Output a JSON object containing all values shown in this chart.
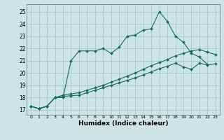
{
  "xlabel": "Humidex (Indice chaleur)",
  "background_color": "#cde4e4",
  "grid_color": "#aacccc",
  "line_color": "#1a6b5a",
  "xlim": [
    -0.5,
    23.5
  ],
  "ylim": [
    16.6,
    25.6
  ],
  "yticks": [
    17,
    18,
    19,
    20,
    21,
    22,
    23,
    24,
    25
  ],
  "xticks": [
    0,
    1,
    2,
    3,
    4,
    5,
    6,
    7,
    8,
    9,
    10,
    11,
    12,
    13,
    14,
    15,
    16,
    17,
    18,
    19,
    20,
    21,
    22,
    23
  ],
  "line1_x": [
    0,
    1,
    2,
    3,
    4,
    5,
    6,
    7,
    8,
    9,
    10,
    11,
    12,
    13,
    14,
    15,
    16,
    17,
    18,
    19,
    20,
    21,
    22
  ],
  "line1_y": [
    17.3,
    17.1,
    17.3,
    18.0,
    18.0,
    21.0,
    21.8,
    21.8,
    21.8,
    22.0,
    21.6,
    22.1,
    23.0,
    23.1,
    23.5,
    23.6,
    25.0,
    24.2,
    23.0,
    22.5,
    21.6,
    21.3,
    20.7
  ],
  "line2_x": [
    0,
    1,
    2,
    3,
    4,
    5,
    6,
    7,
    8,
    9,
    10,
    11,
    12,
    13,
    14,
    15,
    16,
    17,
    18,
    19,
    20,
    21,
    22,
    23
  ],
  "line2_y": [
    17.3,
    17.1,
    17.3,
    18.0,
    18.1,
    18.15,
    18.2,
    18.4,
    18.6,
    18.8,
    19.0,
    19.2,
    19.4,
    19.6,
    19.85,
    20.1,
    20.35,
    20.55,
    20.8,
    20.5,
    20.3,
    20.8,
    20.65,
    20.75
  ],
  "line3_x": [
    0,
    1,
    2,
    3,
    4,
    5,
    6,
    7,
    8,
    9,
    10,
    11,
    12,
    13,
    14,
    15,
    16,
    17,
    18,
    19,
    20,
    21,
    22,
    23
  ],
  "line3_y": [
    17.3,
    17.1,
    17.3,
    18.0,
    18.2,
    18.3,
    18.4,
    18.6,
    18.8,
    19.0,
    19.25,
    19.5,
    19.75,
    20.0,
    20.3,
    20.6,
    20.85,
    21.1,
    21.4,
    21.6,
    21.8,
    21.9,
    21.7,
    21.5
  ]
}
